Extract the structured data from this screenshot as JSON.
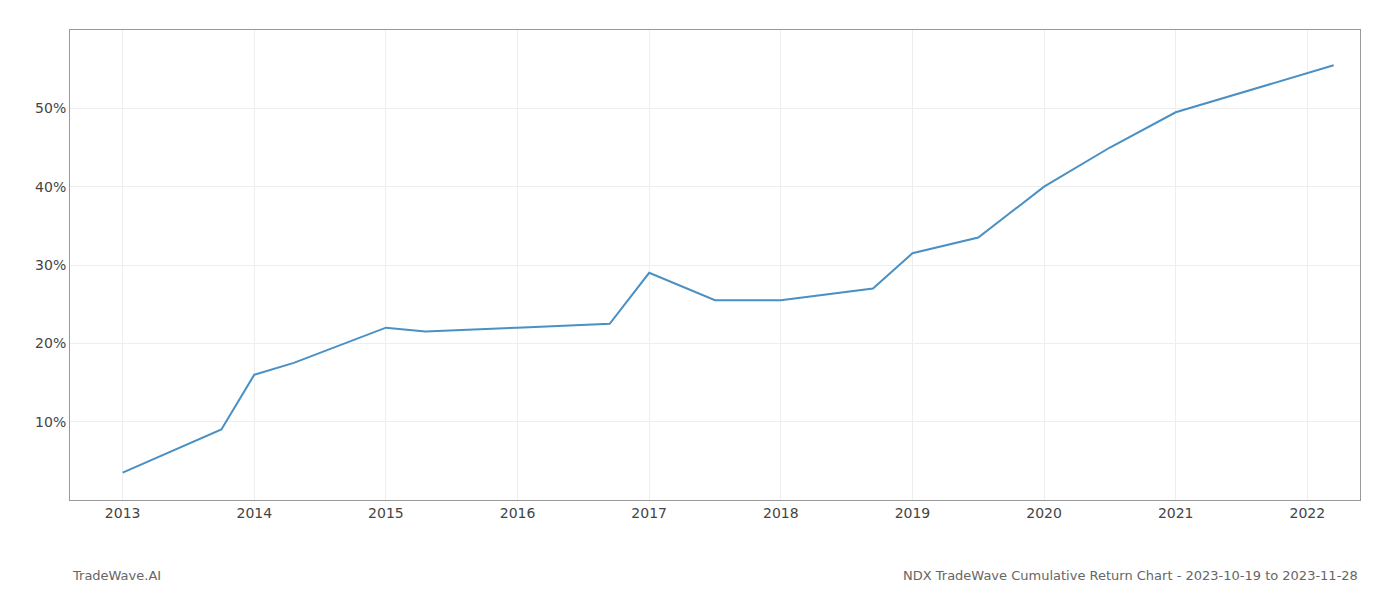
{
  "chart_data": {
    "type": "line",
    "title": "NDX TradeWave Cumulative Return Chart - 2023-10-19 to 2023-11-28",
    "annotations": [
      "TradeWave.AI"
    ],
    "x": [
      2013.0,
      2013.75,
      2014.0,
      2014.3,
      2015.0,
      2015.3,
      2016.0,
      2016.7,
      2017.0,
      2017.5,
      2018.0,
      2018.7,
      2019.0,
      2019.5,
      2020.0,
      2020.5,
      2021.0,
      2021.5,
      2022.0,
      2022.2
    ],
    "values": [
      3.5,
      9.0,
      16.0,
      17.5,
      22.0,
      21.5,
      22.0,
      22.5,
      29.0,
      25.5,
      25.5,
      27.0,
      31.5,
      33.5,
      40.0,
      45.0,
      49.5,
      52.0,
      54.5,
      55.5
    ],
    "color": "#4a90c4",
    "xlim": [
      2012.6,
      2022.4
    ],
    "ylim": [
      0,
      60
    ],
    "xticks": [
      2013,
      2014,
      2015,
      2016,
      2017,
      2018,
      2019,
      2020,
      2021,
      2022
    ],
    "yticks": [
      {
        "value": 10,
        "label": "10%"
      },
      {
        "value": 20,
        "label": "20%"
      },
      {
        "value": 30,
        "label": "30%"
      },
      {
        "value": 40,
        "label": "40%"
      },
      {
        "value": 50,
        "label": "50%"
      }
    ],
    "grid": true
  }
}
